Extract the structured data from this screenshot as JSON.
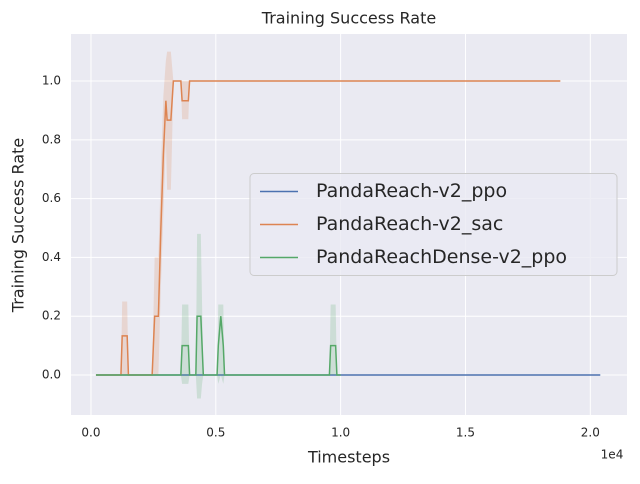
{
  "chart_data": {
    "type": "line",
    "title": "Training Success Rate",
    "x_label": "Timesteps",
    "y_label": "Training Success Rate",
    "x_offset_label": "1e4",
    "xlim": [
      -0.08,
      2.147
    ],
    "ylim": [
      -0.136,
      1.16
    ],
    "xticks": [
      {
        "value": 0,
        "label": "0.0"
      },
      0.5,
      {
        "value": 1,
        "label": "1.0"
      },
      1.5,
      {
        "value": 2,
        "label": "2.0"
      }
    ],
    "yticks": [
      {
        "value": 0,
        "label": "0.0"
      },
      0.2,
      0.4,
      0.6,
      0.8,
      {
        "value": 1,
        "label": "1.0"
      }
    ],
    "grid": true,
    "legend": "center right",
    "series": [
      {
        "name": "PandaReach-v2_ppo",
        "color": "#4c72b0",
        "x": [
          0.02,
          2.04
        ],
        "values": [
          0,
          0
        ],
        "lower": [
          0,
          0
        ],
        "upper": [
          0,
          0
        ]
      },
      {
        "name": "PandaReach-v2_sac",
        "color": "#dd8452",
        "x": [
          0.02,
          0.12,
          0.125,
          0.145,
          0.15,
          0.245,
          0.255,
          0.27,
          0.28,
          0.29,
          0.3,
          0.305,
          0.32,
          0.325,
          0.33,
          0.36,
          0.365,
          0.39,
          0.395,
          1.88
        ],
        "values": [
          0,
          0,
          0.133,
          0.133,
          0,
          0,
          0.2,
          0.2,
          0.5,
          0.75,
          0.933,
          0.867,
          0.867,
          0.933,
          1.0,
          1.0,
          0.933,
          0.933,
          1.0,
          1.0
        ],
        "lower": [
          0,
          0,
          0,
          0,
          0,
          0,
          0,
          0,
          0.3,
          0.55,
          0.8,
          0.63,
          0.63,
          0.8,
          1.0,
          1.0,
          0.87,
          0.87,
          1.0,
          1.0
        ],
        "upper": [
          0,
          0,
          0.25,
          0.25,
          0,
          0,
          0.4,
          0.4,
          0.7,
          0.95,
          1.07,
          1.1,
          1.1,
          1.05,
          1.0,
          1.0,
          1.0,
          1.0,
          1.0,
          1.0
        ]
      },
      {
        "name": "PandaReachDense-v2_ppo",
        "color": "#55a868",
        "x": [
          0.02,
          0.36,
          0.365,
          0.39,
          0.395,
          0.42,
          0.425,
          0.44,
          0.445,
          0.45,
          0.505,
          0.51,
          0.52,
          0.53,
          0.535,
          0.955,
          0.96,
          0.98,
          0.985,
          1.0
        ],
        "values": [
          0,
          0,
          0.1,
          0.1,
          0,
          0,
          0.2,
          0.2,
          0.1,
          0,
          0,
          0.1,
          0.2,
          0.1,
          0,
          0,
          0.1,
          0.1,
          0,
          0
        ],
        "lower": [
          0,
          0,
          -0.03,
          -0.03,
          0,
          0,
          -0.08,
          -0.08,
          -0.03,
          0,
          0,
          -0.03,
          0,
          -0.03,
          0,
          0,
          0,
          0,
          0,
          0
        ],
        "upper": [
          0,
          0,
          0.24,
          0.24,
          0,
          0,
          0.48,
          0.48,
          0.24,
          0,
          0,
          0.24,
          0.24,
          0.24,
          0,
          0,
          0.24,
          0.24,
          0,
          0
        ]
      }
    ]
  }
}
